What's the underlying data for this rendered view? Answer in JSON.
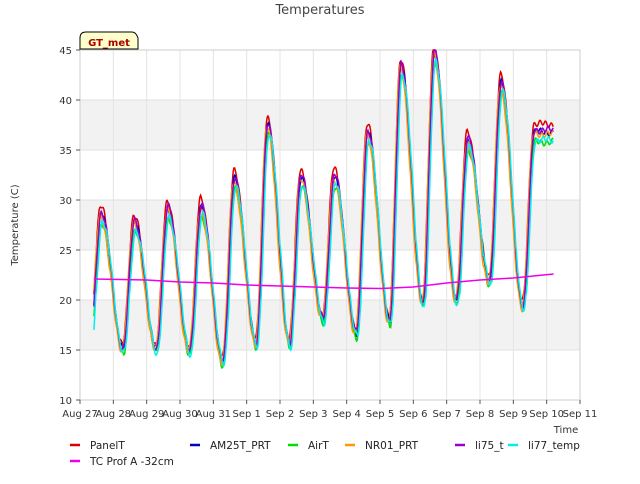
{
  "chart_data": {
    "type": "line",
    "title": "Temperatures",
    "xlabel": "Time",
    "ylabel": "Temperature (C)",
    "badge": "GT_met",
    "ylim": [
      10,
      45
    ],
    "xlim": [
      "2023-08-27",
      "2023-09-11"
    ],
    "yticks": [
      10,
      15,
      20,
      25,
      30,
      35,
      40,
      45
    ],
    "xticks": [
      "Aug 27",
      "Aug 28",
      "Aug 29",
      "Aug 30",
      "Aug 31",
      "Sep 1",
      "Sep 2",
      "Sep 3",
      "Sep 4",
      "Sep 5",
      "Sep 6",
      "Sep 7",
      "Sep 8",
      "Sep 9",
      "Sep 10",
      "Sep 11"
    ],
    "x_start": "Aug 27 10:00",
    "x_end": "Sep 10 05:00",
    "grid": true,
    "legend_position": "bottom",
    "daily_peaks": [
      {
        "date": "Aug 27",
        "max": 28.8
      },
      {
        "date": "Aug 28",
        "max": 28.0
      },
      {
        "date": "Aug 29",
        "max": 29.3
      },
      {
        "date": "Aug 30",
        "max": 29.5
      },
      {
        "date": "Aug 31",
        "max": 32.3
      },
      {
        "date": "Sep 1",
        "max": 37.7
      },
      {
        "date": "Sep 2",
        "max": 32.5
      },
      {
        "date": "Sep 3",
        "max": 32.6
      },
      {
        "date": "Sep 4",
        "max": 37.0
      },
      {
        "date": "Sep 5",
        "max": 43.6
      },
      {
        "date": "Sep 6",
        "max": 44.9
      },
      {
        "date": "Sep 7",
        "max": 36.2
      },
      {
        "date": "Sep 8",
        "max": 41.9
      },
      {
        "date": "Sep 9",
        "max": 37.0
      }
    ],
    "daily_minima": [
      {
        "date": "Aug 27",
        "min": 15.3
      },
      {
        "date": "Aug 28",
        "min": 15.2
      },
      {
        "date": "Aug 29",
        "min": 15.2
      },
      {
        "date": "Aug 30",
        "min": 15.0
      },
      {
        "date": "Aug 31",
        "min": 14.0
      },
      {
        "date": "Sep 1",
        "min": 15.8
      },
      {
        "date": "Sep 2",
        "min": 15.8
      },
      {
        "date": "Sep 3",
        "min": 18.2
      },
      {
        "date": "Sep 4",
        "min": 16.8
      },
      {
        "date": "Sep 5",
        "min": 18.0
      },
      {
        "date": "Sep 6",
        "min": 19.8
      },
      {
        "date": "Sep 7",
        "min": 20.0
      },
      {
        "date": "Sep 8",
        "min": 22.0
      },
      {
        "date": "Sep 9",
        "min": 19.5
      }
    ],
    "series": [
      {
        "name": "PanelT",
        "color": "#dd0000",
        "offset": 0.6,
        "shift": 0.0
      },
      {
        "name": "AM25T_PRT",
        "color": "#0000cc",
        "offset": -0.2,
        "shift": 0.015
      },
      {
        "name": "AirT",
        "color": "#00dd00",
        "offset": -1.2,
        "shift": 0.03
      },
      {
        "name": "NR01_PRT",
        "color": "#ff9900",
        "offset": -0.4,
        "shift": -0.01
      },
      {
        "name": "li75_t",
        "color": "#9900cc",
        "offset": 0.0,
        "shift": 0.02
      },
      {
        "name": "li77_temp",
        "color": "#00eeee",
        "offset": -1.0,
        "shift": 0.05
      },
      {
        "name": "TC Prof A -32cm",
        "color": "#ee00ee",
        "points": [
          {
            "x": "Aug 27 10:00",
            "y": 22.1
          },
          {
            "x": "Aug 29 00:00",
            "y": 22.0
          },
          {
            "x": "Aug 30 00:00",
            "y": 21.8
          },
          {
            "x": "Aug 31 00:00",
            "y": 21.7
          },
          {
            "x": "Sep 1 00:00",
            "y": 21.5
          },
          {
            "x": "Sep 2 00:00",
            "y": 21.4
          },
          {
            "x": "Sep 3 00:00",
            "y": 21.3
          },
          {
            "x": "Sep 4 00:00",
            "y": 21.2
          },
          {
            "x": "Sep 5 00:00",
            "y": 21.15
          },
          {
            "x": "Sep 6 00:00",
            "y": 21.3
          },
          {
            "x": "Sep 7 00:00",
            "y": 21.7
          },
          {
            "x": "Sep 8 00:00",
            "y": 22.0
          },
          {
            "x": "Sep 9 00:00",
            "y": 22.2
          },
          {
            "x": "Sep 10 05:00",
            "y": 22.6
          }
        ]
      }
    ]
  }
}
